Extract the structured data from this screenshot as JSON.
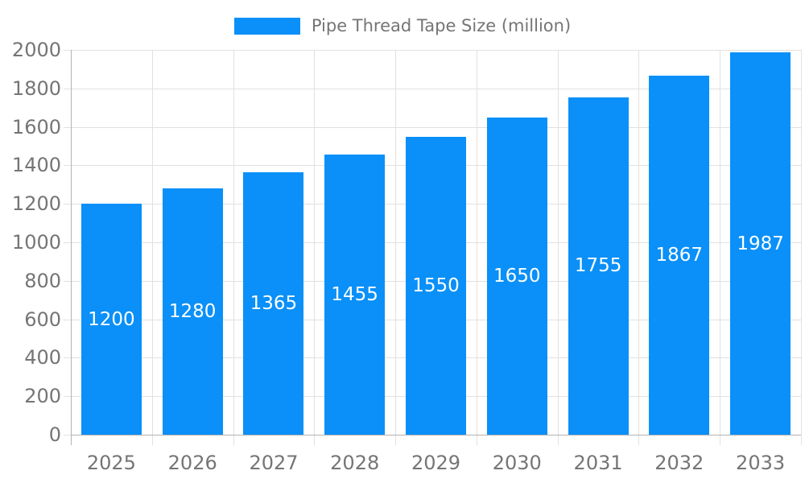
{
  "legend": {
    "label": "Pipe Thread Tape Size (million)"
  },
  "chart_data": {
    "type": "bar",
    "title": "",
    "legend_label": "Pipe Thread Tape Size (million)",
    "categories": [
      "2025",
      "2026",
      "2027",
      "2028",
      "2029",
      "2030",
      "2031",
      "2032",
      "2033"
    ],
    "values": [
      1200,
      1280,
      1365,
      1455,
      1550,
      1650,
      1755,
      1867,
      1987
    ],
    "bar_labels": [
      "1200",
      "1280",
      "1365",
      "1455",
      "1550",
      "1650",
      "1755",
      "1867",
      "1987"
    ],
    "xlabel": "",
    "ylabel": "",
    "ylim": [
      0,
      2000
    ],
    "ytick_step": 200,
    "ytick_labels": [
      "0",
      "200",
      "400",
      "600",
      "800",
      "1000",
      "1200",
      "1400",
      "1600",
      "1800",
      "2000"
    ],
    "grid": true,
    "legend_position": "top-center",
    "colors": {
      "bar": "#0a90f8",
      "bar_label": "#ffffff",
      "grid": "#e1e1e1",
      "axis": "#b3b3b3",
      "tick_text": "#757575",
      "legend_text": "#757575"
    }
  }
}
